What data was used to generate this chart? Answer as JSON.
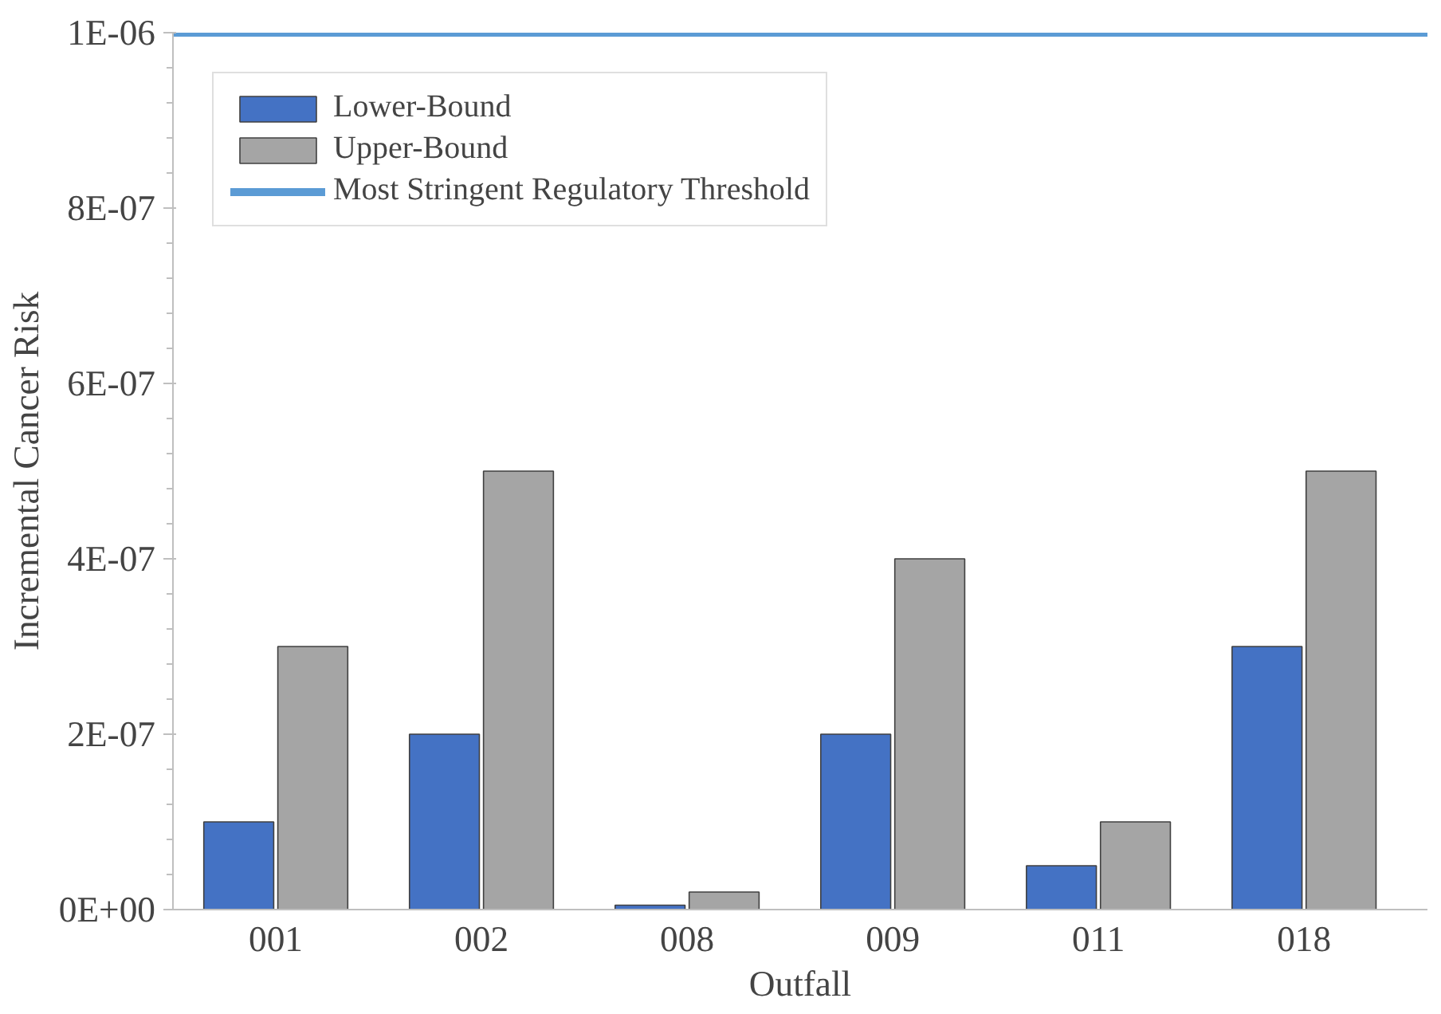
{
  "chart_data": {
    "type": "bar",
    "xlabel": "Outfall",
    "ylabel": "Incremental Cancer Risk",
    "categories": [
      "001",
      "002",
      "008",
      "009",
      "011",
      "018"
    ],
    "series": [
      {
        "name": "Lower-Bound",
        "color": "#4472c4",
        "values": [
          1e-07,
          2e-07,
          5e-09,
          2e-07,
          5e-08,
          3e-07
        ]
      },
      {
        "name": "Upper-Bound",
        "color": "#a5a5a5",
        "values": [
          3e-07,
          5e-07,
          2e-08,
          4e-07,
          1e-07,
          5e-07
        ]
      }
    ],
    "ylim": [
      0,
      1e-06
    ],
    "yticks": [
      {
        "value": 0,
        "label": "0E+00"
      },
      {
        "value": 2e-07,
        "label": "2E-07"
      },
      {
        "value": 4e-07,
        "label": "4E-07"
      },
      {
        "value": 6e-07,
        "label": "6E-07"
      },
      {
        "value": 8e-07,
        "label": "8E-07"
      },
      {
        "value": 1e-06,
        "label": "1E-06"
      }
    ],
    "ref_lines": [
      {
        "axis": "y",
        "value": 1e-06,
        "label": "Most Stringent Regulatory Threshold",
        "color": "#5b9bd5"
      }
    ],
    "legend": "top left",
    "grid": false
  }
}
